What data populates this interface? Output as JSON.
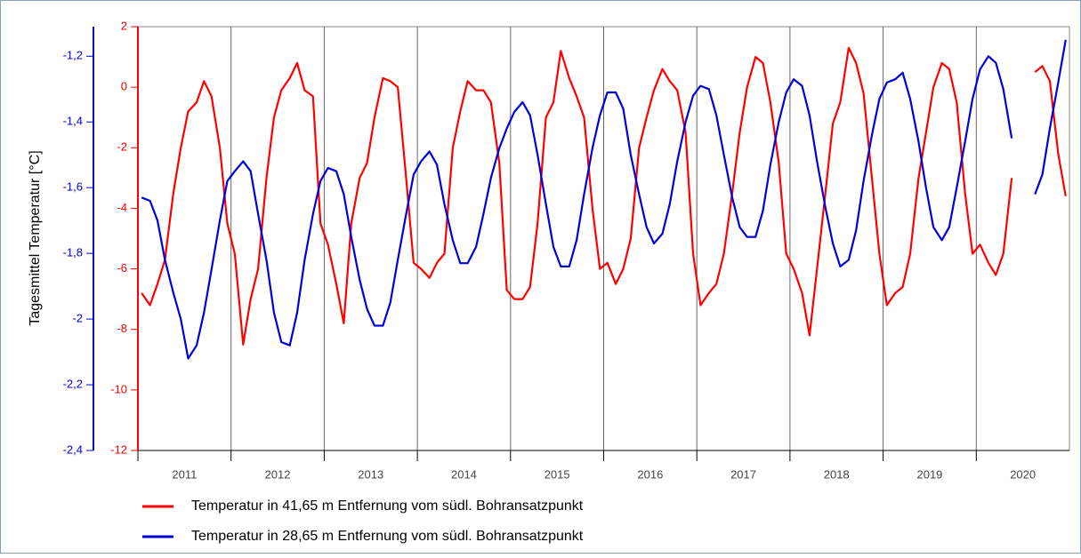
{
  "chart_data": {
    "type": "line",
    "y_label": "Tagesmittel Temperatur  [°C]",
    "x": [
      2011.04,
      2011.13,
      2011.21,
      2011.29,
      2011.38,
      2011.46,
      2011.54,
      2011.63,
      2011.71,
      2011.79,
      2011.88,
      2011.96,
      2012.04,
      2012.13,
      2012.21,
      2012.29,
      2012.38,
      2012.46,
      2012.54,
      2012.63,
      2012.71,
      2012.79,
      2012.88,
      2012.96,
      2013.04,
      2013.13,
      2013.21,
      2013.29,
      2013.38,
      2013.46,
      2013.54,
      2013.63,
      2013.71,
      2013.79,
      2013.88,
      2013.96,
      2014.04,
      2014.13,
      2014.21,
      2014.29,
      2014.38,
      2014.46,
      2014.54,
      2014.63,
      2014.71,
      2014.79,
      2014.88,
      2014.96,
      2015.04,
      2015.13,
      2015.21,
      2015.29,
      2015.38,
      2015.46,
      2015.54,
      2015.63,
      2015.71,
      2015.79,
      2015.88,
      2015.96,
      2016.04,
      2016.13,
      2016.21,
      2016.29,
      2016.38,
      2016.46,
      2016.54,
      2016.63,
      2016.71,
      2016.79,
      2016.88,
      2016.96,
      2017.04,
      2017.13,
      2017.21,
      2017.29,
      2017.38,
      2017.46,
      2017.54,
      2017.63,
      2017.71,
      2017.79,
      2017.88,
      2017.96,
      2018.04,
      2018.13,
      2018.21,
      2018.29,
      2018.38,
      2018.46,
      2018.54,
      2018.63,
      2018.71,
      2018.79,
      2018.88,
      2018.96,
      2019.04,
      2019.13,
      2019.21,
      2019.29,
      2019.38,
      2019.46,
      2019.54,
      2019.63,
      2019.71,
      2019.79,
      2019.88,
      2019.96,
      2020.04,
      2020.13,
      2020.21,
      2020.29,
      2020.38,
      2020.46,
      2020.54,
      2020.63,
      2020.71,
      2020.79,
      2020.88,
      2020.96
    ],
    "series": [
      {
        "name": "Temperatur in 41,65 m Entfernung vom südl. Bohransatzpunkt",
        "color": "#ff0000",
        "axis": "y",
        "values": [
          -6.8,
          -7.2,
          -6.5,
          -5.7,
          -3.5,
          -2,
          -0.8,
          -0.5,
          0.2,
          -0.3,
          -2,
          -4.5,
          -5.5,
          -8.5,
          -7,
          -6,
          -3,
          -1,
          -0.1,
          0.3,
          0.8,
          -0.1,
          -0.3,
          -4.5,
          -5.2,
          -6.5,
          -7.8,
          -4.5,
          -3,
          -2.5,
          -1,
          0.3,
          0.2,
          0,
          -3,
          -5.8,
          -6,
          -6.3,
          -5.8,
          -5.5,
          -2,
          -0.8,
          0.2,
          -0.1,
          -0.1,
          -0.5,
          -2.5,
          -6.7,
          -7,
          -7,
          -6.6,
          -4.5,
          -1,
          -0.5,
          1.2,
          0.3,
          -0.3,
          -1,
          -4,
          -6,
          -5.8,
          -6.5,
          -6,
          -5,
          -2,
          -1,
          -0.1,
          0.6,
          0.2,
          -0.1,
          -1.5,
          -5.5,
          -7.2,
          -6.8,
          -6.5,
          -5.5,
          -3.5,
          -1.5,
          0,
          1,
          0.8,
          -0.5,
          -2.5,
          -5.5,
          -6,
          -6.8,
          -8.2,
          -6,
          -3.5,
          -1.2,
          -0.5,
          1.3,
          0.8,
          -0.2,
          -3,
          -5.5,
          -7.2,
          -6.8,
          -6.6,
          -5.5,
          -3,
          -1.5,
          0,
          0.8,
          0.6,
          -0.5,
          -3.5,
          -5.5,
          -5.2,
          -5.8,
          -6.2,
          -5.5,
          -3,
          null,
          null,
          0.5,
          0.7,
          0.2,
          -2.2,
          -3.6
        ]
      },
      {
        "name": "Temperatur in 28,65 m Entfernung vom südl. Bohransatzpunkt",
        "color": "#0000dd",
        "axis": "y2",
        "values": [
          -1.63,
          -1.64,
          -1.7,
          -1.82,
          -1.92,
          -2,
          -2.12,
          -2.08,
          -1.98,
          -1.85,
          -1.7,
          -1.58,
          -1.55,
          -1.52,
          -1.55,
          -1.68,
          -1.82,
          -1.98,
          -2.07,
          -2.08,
          -1.98,
          -1.82,
          -1.68,
          -1.58,
          -1.54,
          -1.55,
          -1.62,
          -1.75,
          -1.88,
          -1.97,
          -2.02,
          -2.02,
          -1.95,
          -1.82,
          -1.68,
          -1.56,
          -1.52,
          -1.49,
          -1.53,
          -1.65,
          -1.76,
          -1.83,
          -1.83,
          -1.78,
          -1.68,
          -1.57,
          -1.48,
          -1.42,
          -1.37,
          -1.34,
          -1.38,
          -1.5,
          -1.65,
          -1.78,
          -1.84,
          -1.84,
          -1.76,
          -1.62,
          -1.48,
          -1.38,
          -1.31,
          -1.31,
          -1.36,
          -1.5,
          -1.62,
          -1.72,
          -1.77,
          -1.74,
          -1.65,
          -1.52,
          -1.4,
          -1.32,
          -1.29,
          -1.3,
          -1.38,
          -1.5,
          -1.63,
          -1.72,
          -1.75,
          -1.75,
          -1.67,
          -1.53,
          -1.4,
          -1.31,
          -1.27,
          -1.29,
          -1.38,
          -1.52,
          -1.66,
          -1.77,
          -1.84,
          -1.82,
          -1.73,
          -1.58,
          -1.44,
          -1.33,
          -1.28,
          -1.27,
          -1.25,
          -1.33,
          -1.46,
          -1.6,
          -1.72,
          -1.76,
          -1.72,
          -1.6,
          -1.46,
          -1.33,
          -1.24,
          -1.2,
          -1.22,
          -1.3,
          -1.45,
          null,
          null,
          -1.62,
          -1.56,
          -1.42,
          -1.28,
          -1.15
        ]
      }
    ],
    "xlim": [
      2011,
      2021
    ],
    "xticks": [
      2011,
      2012,
      2013,
      2014,
      2015,
      2016,
      2017,
      2018,
      2019,
      2020
    ],
    "ylim": [
      -12,
      2
    ],
    "yticks": [
      -12,
      -10,
      -8,
      -6,
      -4,
      -2,
      0,
      2
    ],
    "y2lim": [
      -2.4,
      -1.11
    ],
    "y2ticks": [
      {
        "value": -2.4,
        "label": "-2,4"
      },
      {
        "value": -2.2,
        "label": "-2,2"
      },
      -2,
      {
        "value": -1.8,
        "label": "-1,8"
      },
      {
        "value": -1.6,
        "label": "-1,6"
      },
      {
        "value": -1.4,
        "label": "-1,4"
      },
      {
        "value": -1.2,
        "label": "-1,2"
      }
    ],
    "grid": true,
    "legend": "bottom-left"
  }
}
